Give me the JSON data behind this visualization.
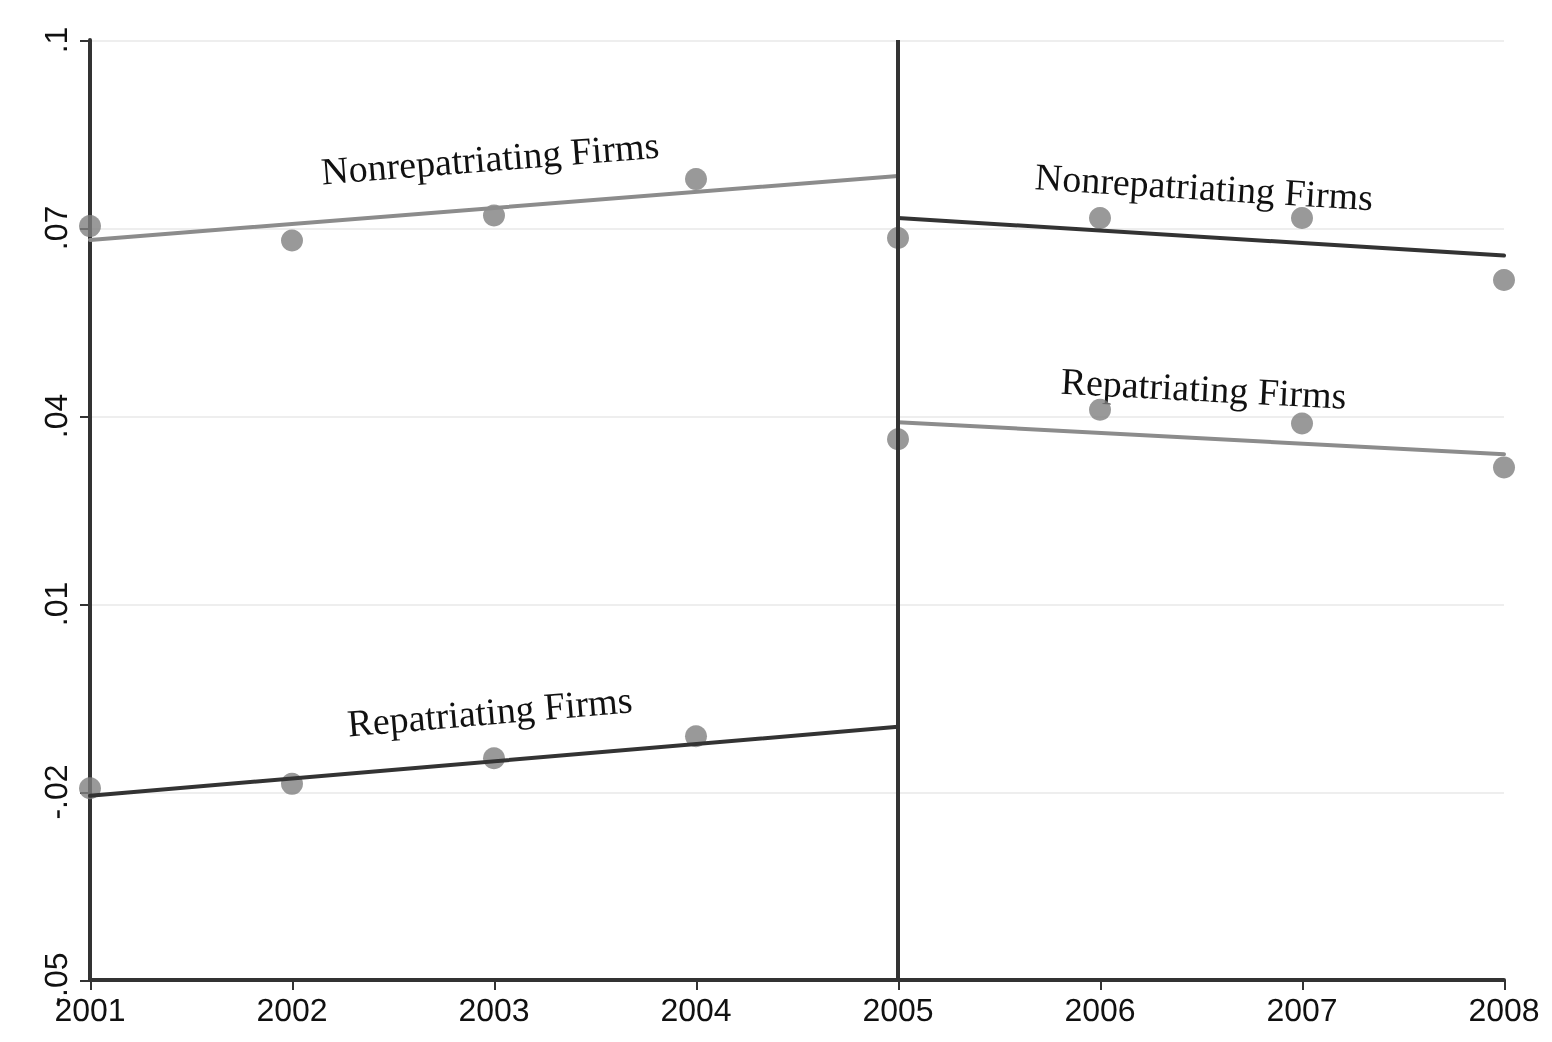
{
  "chart_data": {
    "type": "scatter",
    "series": [
      {
        "color": "#808080",
        "marker": "circle",
        "x": [
          2001,
          2002,
          2003,
          2004,
          2005,
          2006,
          2007,
          2008
        ],
        "values": [
          0.0703,
          0.068,
          0.072,
          0.0778,
          0.0684,
          0.0716,
          0.0716,
          0.0617
        ]
      },
      {
        "color": "#808080",
        "marker": "circle",
        "x": [
          2001,
          2002,
          2003,
          2004,
          2005,
          2006,
          2007,
          2008
        ],
        "values": [
          -0.0194,
          -0.0187,
          -0.0146,
          -0.0111,
          0.0363,
          0.041,
          0.0388,
          0.0318
        ]
      },
      {
        "type": "line",
        "name": "Nonrepatriating Firms",
        "marker": "none",
        "color": "#8c8c8c",
        "x": [
          2001,
          2005
        ],
        "values": [
          0.0681,
          0.0783
        ]
      },
      {
        "type": "line",
        "name": "Nonrepatriating Firms",
        "marker": "none",
        "color": "#333333",
        "x": [
          2005,
          2008
        ],
        "values": [
          0.0716,
          0.0656
        ]
      },
      {
        "type": "line",
        "name": "Repatriating Firms",
        "marker": "none",
        "color": "#333333",
        "x": [
          2001,
          2005
        ],
        "values": [
          -0.0206,
          -0.0096
        ]
      },
      {
        "type": "line",
        "name": "Repatriating Firms",
        "marker": "none",
        "color": "#8c8c8c",
        "x": [
          2005,
          2008
        ],
        "values": [
          0.039,
          0.0339
        ]
      }
    ],
    "ref_lines": [
      {
        "axis": "x",
        "value": 2005,
        "color": "#333333"
      }
    ],
    "xlim": [
      2001,
      2008
    ],
    "xticks": [
      2001,
      2002,
      2003,
      2004,
      2005,
      2006,
      2007,
      2008
    ],
    "ylim": [
      -0.05,
      0.1
    ],
    "yticks": [
      {
        "value": -0.05,
        "label": "-.05"
      },
      {
        "value": -0.02,
        "label": "-.02"
      },
      {
        "value": 0.01,
        "label": ".01"
      },
      {
        "value": 0.04,
        "label": ".04"
      },
      {
        "value": 0.07,
        "label": ".07"
      },
      {
        "value": 0.1,
        "label": ".1"
      }
    ],
    "grid": "y",
    "line_style": "solid"
  }
}
